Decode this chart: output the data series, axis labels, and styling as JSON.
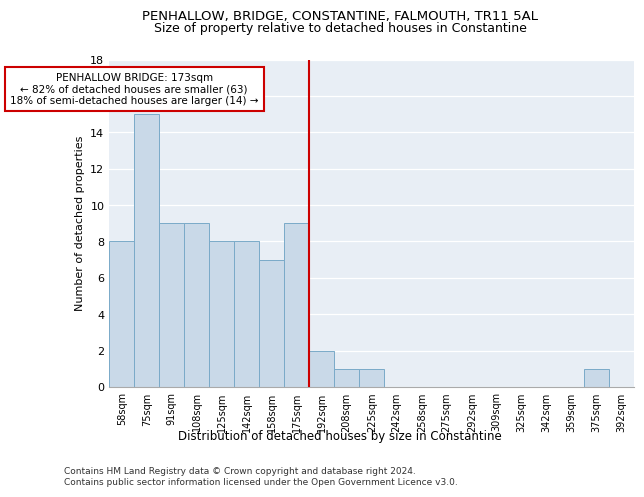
{
  "title1": "PENHALLOW, BRIDGE, CONSTANTINE, FALMOUTH, TR11 5AL",
  "title2": "Size of property relative to detached houses in Constantine",
  "xlabel": "Distribution of detached houses by size in Constantine",
  "ylabel": "Number of detached properties",
  "categories": [
    "58sqm",
    "75sqm",
    "91sqm",
    "108sqm",
    "125sqm",
    "142sqm",
    "158sqm",
    "175sqm",
    "192sqm",
    "208sqm",
    "225sqm",
    "242sqm",
    "258sqm",
    "275sqm",
    "292sqm",
    "309sqm",
    "325sqm",
    "342sqm",
    "359sqm",
    "375sqm",
    "392sqm"
  ],
  "values": [
    8,
    15,
    9,
    9,
    8,
    8,
    7,
    9,
    2,
    1,
    1,
    0,
    0,
    0,
    0,
    0,
    0,
    0,
    0,
    1,
    0
  ],
  "bar_color": "#c9d9e8",
  "bar_edge_color": "#7aaac8",
  "vline_x_index": 7,
  "vline_color": "#cc0000",
  "annotation_text": "PENHALLOW BRIDGE: 173sqm\n← 82% of detached houses are smaller (63)\n18% of semi-detached houses are larger (14) →",
  "annotation_box_edge": "#cc0000",
  "ylim": [
    0,
    18
  ],
  "yticks": [
    0,
    2,
    4,
    6,
    8,
    10,
    12,
    14,
    16,
    18
  ],
  "background_color": "#e8eef5",
  "footer1": "Contains HM Land Registry data © Crown copyright and database right 2024.",
  "footer2": "Contains public sector information licensed under the Open Government Licence v3.0."
}
